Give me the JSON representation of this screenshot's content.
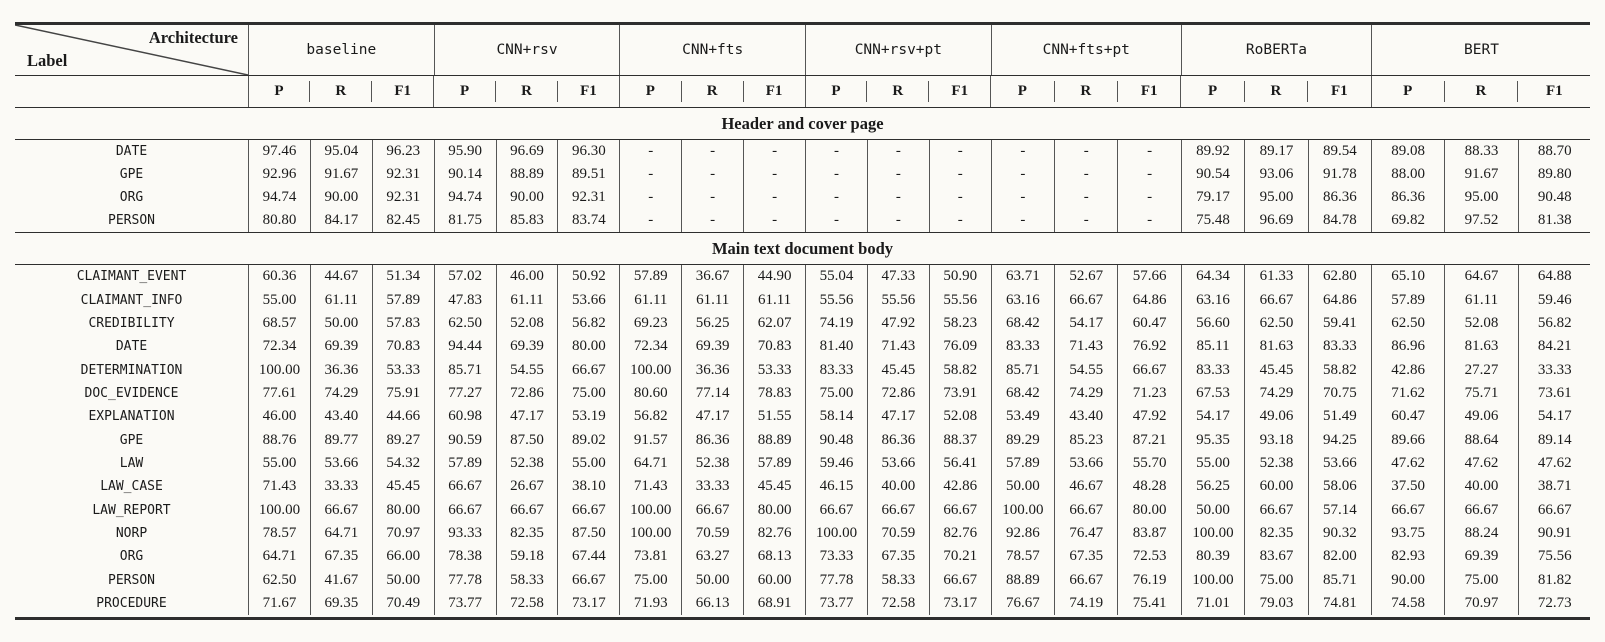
{
  "table": {
    "corner": {
      "architecture": "Architecture",
      "label": "Label"
    },
    "architectures": [
      "baseline",
      "CNN+rsv",
      "CNN+fts",
      "CNN+rsv+pt",
      "CNN+fts+pt",
      "RoBERTa",
      "BERT"
    ],
    "metrics": [
      "P",
      "R",
      "F1"
    ],
    "sections": [
      {
        "title": "Header and cover page",
        "rows": [
          {
            "label": "DATE",
            "values": [
              "97.46",
              "95.04",
              "96.23",
              "95.90",
              "96.69",
              "96.30",
              "-",
              "-",
              "-",
              "-",
              "-",
              "-",
              "-",
              "-",
              "-",
              "89.92",
              "89.17",
              "89.54",
              "89.08",
              "88.33",
              "88.70"
            ]
          },
          {
            "label": "GPE",
            "values": [
              "92.96",
              "91.67",
              "92.31",
              "90.14",
              "88.89",
              "89.51",
              "-",
              "-",
              "-",
              "-",
              "-",
              "-",
              "-",
              "-",
              "-",
              "90.54",
              "93.06",
              "91.78",
              "88.00",
              "91.67",
              "89.80"
            ]
          },
          {
            "label": "ORG",
            "values": [
              "94.74",
              "90.00",
              "92.31",
              "94.74",
              "90.00",
              "92.31",
              "-",
              "-",
              "-",
              "-",
              "-",
              "-",
              "-",
              "-",
              "-",
              "79.17",
              "95.00",
              "86.36",
              "86.36",
              "95.00",
              "90.48"
            ]
          },
          {
            "label": "PERSON",
            "values": [
              "80.80",
              "84.17",
              "82.45",
              "81.75",
              "85.83",
              "83.74",
              "-",
              "-",
              "-",
              "-",
              "-",
              "-",
              "-",
              "-",
              "-",
              "75.48",
              "96.69",
              "84.78",
              "69.82",
              "97.52",
              "81.38"
            ]
          }
        ]
      },
      {
        "title": "Main text document body",
        "rows": [
          {
            "label": "CLAIMANT_EVENT",
            "values": [
              "60.36",
              "44.67",
              "51.34",
              "57.02",
              "46.00",
              "50.92",
              "57.89",
              "36.67",
              "44.90",
              "55.04",
              "47.33",
              "50.90",
              "63.71",
              "52.67",
              "57.66",
              "64.34",
              "61.33",
              "62.80",
              "65.10",
              "64.67",
              "64.88"
            ]
          },
          {
            "label": "CLAIMANT_INFO",
            "values": [
              "55.00",
              "61.11",
              "57.89",
              "47.83",
              "61.11",
              "53.66",
              "61.11",
              "61.11",
              "61.11",
              "55.56",
              "55.56",
              "55.56",
              "63.16",
              "66.67",
              "64.86",
              "63.16",
              "66.67",
              "64.86",
              "57.89",
              "61.11",
              "59.46"
            ]
          },
          {
            "label": "CREDIBILITY",
            "values": [
              "68.57",
              "50.00",
              "57.83",
              "62.50",
              "52.08",
              "56.82",
              "69.23",
              "56.25",
              "62.07",
              "74.19",
              "47.92",
              "58.23",
              "68.42",
              "54.17",
              "60.47",
              "56.60",
              "62.50",
              "59.41",
              "62.50",
              "52.08",
              "56.82"
            ]
          },
          {
            "label": "DATE",
            "values": [
              "72.34",
              "69.39",
              "70.83",
              "94.44",
              "69.39",
              "80.00",
              "72.34",
              "69.39",
              "70.83",
              "81.40",
              "71.43",
              "76.09",
              "83.33",
              "71.43",
              "76.92",
              "85.11",
              "81.63",
              "83.33",
              "86.96",
              "81.63",
              "84.21"
            ]
          },
          {
            "label": "DETERMINATION",
            "values": [
              "100.00",
              "36.36",
              "53.33",
              "85.71",
              "54.55",
              "66.67",
              "100.00",
              "36.36",
              "53.33",
              "83.33",
              "45.45",
              "58.82",
              "85.71",
              "54.55",
              "66.67",
              "83.33",
              "45.45",
              "58.82",
              "42.86",
              "27.27",
              "33.33"
            ]
          },
          {
            "label": "DOC_EVIDENCE",
            "values": [
              "77.61",
              "74.29",
              "75.91",
              "77.27",
              "72.86",
              "75.00",
              "80.60",
              "77.14",
              "78.83",
              "75.00",
              "72.86",
              "73.91",
              "68.42",
              "74.29",
              "71.23",
              "67.53",
              "74.29",
              "70.75",
              "71.62",
              "75.71",
              "73.61"
            ]
          },
          {
            "label": "EXPLANATION",
            "values": [
              "46.00",
              "43.40",
              "44.66",
              "60.98",
              "47.17",
              "53.19",
              "56.82",
              "47.17",
              "51.55",
              "58.14",
              "47.17",
              "52.08",
              "53.49",
              "43.40",
              "47.92",
              "54.17",
              "49.06",
              "51.49",
              "60.47",
              "49.06",
              "54.17"
            ]
          },
          {
            "label": "GPE",
            "values": [
              "88.76",
              "89.77",
              "89.27",
              "90.59",
              "87.50",
              "89.02",
              "91.57",
              "86.36",
              "88.89",
              "90.48",
              "86.36",
              "88.37",
              "89.29",
              "85.23",
              "87.21",
              "95.35",
              "93.18",
              "94.25",
              "89.66",
              "88.64",
              "89.14"
            ]
          },
          {
            "label": "LAW",
            "values": [
              "55.00",
              "53.66",
              "54.32",
              "57.89",
              "52.38",
              "55.00",
              "64.71",
              "52.38",
              "57.89",
              "59.46",
              "53.66",
              "56.41",
              "57.89",
              "53.66",
              "55.70",
              "55.00",
              "52.38",
              "53.66",
              "47.62",
              "47.62",
              "47.62"
            ]
          },
          {
            "label": "LAW_CASE",
            "values": [
              "71.43",
              "33.33",
              "45.45",
              "66.67",
              "26.67",
              "38.10",
              "71.43",
              "33.33",
              "45.45",
              "46.15",
              "40.00",
              "42.86",
              "50.00",
              "46.67",
              "48.28",
              "56.25",
              "60.00",
              "58.06",
              "37.50",
              "40.00",
              "38.71"
            ]
          },
          {
            "label": "LAW_REPORT",
            "values": [
              "100.00",
              "66.67",
              "80.00",
              "66.67",
              "66.67",
              "66.67",
              "100.00",
              "66.67",
              "80.00",
              "66.67",
              "66.67",
              "66.67",
              "100.00",
              "66.67",
              "80.00",
              "50.00",
              "66.67",
              "57.14",
              "66.67",
              "66.67",
              "66.67"
            ]
          },
          {
            "label": "NORP",
            "values": [
              "78.57",
              "64.71",
              "70.97",
              "93.33",
              "82.35",
              "87.50",
              "100.00",
              "70.59",
              "82.76",
              "100.00",
              "70.59",
              "82.76",
              "92.86",
              "76.47",
              "83.87",
              "100.00",
              "82.35",
              "90.32",
              "93.75",
              "88.24",
              "90.91"
            ]
          },
          {
            "label": "ORG",
            "values": [
              "64.71",
              "67.35",
              "66.00",
              "78.38",
              "59.18",
              "67.44",
              "73.81",
              "63.27",
              "68.13",
              "73.33",
              "67.35",
              "70.21",
              "78.57",
              "67.35",
              "72.53",
              "80.39",
              "83.67",
              "82.00",
              "82.93",
              "69.39",
              "75.56"
            ]
          },
          {
            "label": "PERSON",
            "values": [
              "62.50",
              "41.67",
              "50.00",
              "77.78",
              "58.33",
              "66.67",
              "75.00",
              "50.00",
              "60.00",
              "77.78",
              "58.33",
              "66.67",
              "88.89",
              "66.67",
              "76.19",
              "100.00",
              "75.00",
              "85.71",
              "90.00",
              "75.00",
              "81.82"
            ]
          },
          {
            "label": "PROCEDURE",
            "values": [
              "71.67",
              "69.35",
              "70.49",
              "73.77",
              "72.58",
              "73.17",
              "71.93",
              "66.13",
              "68.91",
              "73.77",
              "72.58",
              "73.17",
              "76.67",
              "74.19",
              "75.41",
              "71.01",
              "79.03",
              "74.81",
              "74.58",
              "70.97",
              "72.73"
            ]
          }
        ]
      }
    ]
  },
  "colors": {
    "text": "#1a1a1a",
    "rule": "#2e2e2e",
    "separator": "#555555",
    "background": "#fbfaf6"
  }
}
